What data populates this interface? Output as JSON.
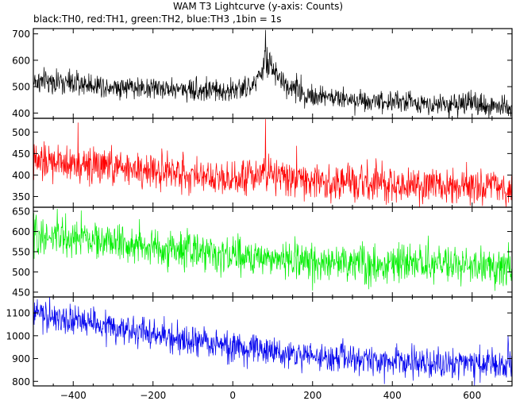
{
  "title": "WAM T3 Lightcurve (y-axis: Counts)",
  "subtitle": "black:TH0, red:TH1, green:TH2, blue:TH3 ,1bin = 1s",
  "chart_data": {
    "type": "line",
    "title": "WAM T3 Lightcurve (y-axis: Counts)",
    "subtitle": "black:TH0, red:TH1, green:TH2, blue:TH3 ,1bin = 1s",
    "xlim": [
      -500,
      700
    ],
    "x_ticks": [
      -400,
      -200,
      0,
      200,
      400,
      600
    ],
    "x_tick_labels": [
      "−400",
      "−200",
      "0",
      "200",
      "400",
      "600"
    ],
    "bin_seconds": 1,
    "legend": "none",
    "grid": false,
    "panels": [
      {
        "name": "TH0",
        "color": "#000000",
        "ylim": [
          380,
          720
        ],
        "y_ticks": [
          400,
          500,
          600,
          700
        ],
        "y_tick_labels": [
          "400",
          "500",
          "600",
          "700"
        ],
        "x": [
          -500,
          -450,
          -400,
          -350,
          -300,
          -250,
          -200,
          -150,
          -100,
          -50,
          0,
          40,
          60,
          75,
          80,
          85,
          90,
          100,
          110,
          130,
          150,
          180,
          200,
          250,
          300,
          350,
          400,
          450,
          500,
          550,
          600,
          650,
          700
        ],
        "baseline": [
          520,
          518,
          512,
          508,
          502,
          498,
          495,
          492,
          490,
          485,
          485,
          495,
          520,
          560,
          620,
          560,
          585,
          570,
          540,
          510,
          495,
          475,
          465,
          458,
          452,
          448,
          445,
          440,
          438,
          433,
          430,
          428,
          425
        ],
        "noise": 22,
        "spikes": [
          {
            "x": 82,
            "y": 715
          },
          {
            "x": 86,
            "y": 650
          },
          {
            "x": 97,
            "y": 618
          },
          {
            "x": 160,
            "y": 552
          }
        ]
      },
      {
        "name": "TH1",
        "color": "#ff0000",
        "ylim": [
          325,
          532
        ],
        "y_ticks": [
          350,
          400,
          450,
          500
        ],
        "y_tick_labels": [
          "350",
          "400",
          "450",
          "500"
        ],
        "x": [
          -500,
          -450,
          -400,
          -350,
          -300,
          -250,
          -200,
          -150,
          -100,
          -50,
          0,
          50,
          75,
          80,
          85,
          90,
          100,
          130,
          180,
          250,
          300,
          350,
          400,
          450,
          500,
          550,
          600,
          650,
          700
        ],
        "baseline": [
          428,
          428,
          425,
          422,
          418,
          415,
          410,
          406,
          402,
          398,
          395,
          398,
          410,
          420,
          405,
          415,
          405,
          395,
          388,
          383,
          380,
          378,
          375,
          375,
          373,
          372,
          371,
          370,
          370
        ],
        "noise": 21,
        "spikes": [
          {
            "x": 82,
            "y": 530
          },
          {
            "x": -388,
            "y": 522
          },
          {
            "x": 160,
            "y": 468
          }
        ]
      },
      {
        "name": "TH2",
        "color": "#00ee00",
        "ylim": [
          438,
          660
        ],
        "y_ticks": [
          450,
          500,
          550,
          600,
          650
        ],
        "y_tick_labels": [
          "450",
          "500",
          "550",
          "600",
          "650"
        ],
        "x": [
          -500,
          -450,
          -400,
          -350,
          -300,
          -250,
          -200,
          -150,
          -100,
          -50,
          0,
          50,
          100,
          150,
          200,
          250,
          300,
          350,
          400,
          450,
          500,
          550,
          600,
          650,
          700
        ],
        "baseline": [
          590,
          587,
          583,
          578,
          573,
          567,
          561,
          555,
          550,
          545,
          540,
          536,
          533,
          530,
          527,
          524,
          522,
          520,
          518,
          517,
          515,
          514,
          513,
          512,
          512
        ],
        "noise": 23,
        "spikes": [
          {
            "x": -440,
            "y": 656
          },
          {
            "x": -380,
            "y": 652
          }
        ]
      },
      {
        "name": "TH3",
        "color": "#0000ee",
        "ylim": [
          780,
          1170
        ],
        "y_ticks": [
          800,
          900,
          1000,
          1100
        ],
        "y_tick_labels": [
          "800",
          "900",
          "1000",
          "1100"
        ],
        "x": [
          -500,
          -450,
          -400,
          -350,
          -300,
          -250,
          -200,
          -150,
          -100,
          -50,
          0,
          50,
          100,
          150,
          200,
          250,
          300,
          350,
          400,
          450,
          500,
          550,
          600,
          650,
          700
        ],
        "baseline": [
          1095,
          1080,
          1065,
          1050,
          1035,
          1020,
          1005,
          990,
          975,
          962,
          950,
          938,
          928,
          918,
          910,
          903,
          896,
          890,
          885,
          881,
          878,
          876,
          875,
          874,
          874
        ],
        "noise": 33,
        "spikes": [
          {
            "x": -490,
            "y": 1160
          },
          {
            "x": 690,
            "y": 1000
          }
        ]
      }
    ]
  }
}
